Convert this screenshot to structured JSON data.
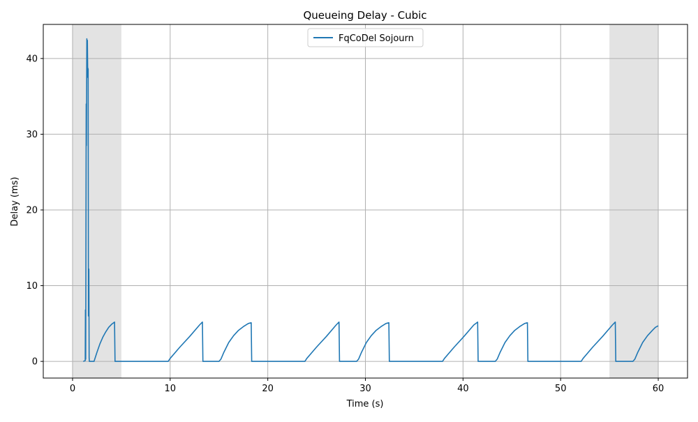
{
  "chart_data": {
    "type": "line",
    "title": "Queueing Delay - Cubic",
    "xlabel": "Time (s)",
    "ylabel": "Delay (ms)",
    "xlim": [
      -3,
      63
    ],
    "ylim": [
      -2.2,
      44.5
    ],
    "xticks": [
      0,
      10,
      20,
      30,
      40,
      50,
      60
    ],
    "yticks": [
      0,
      10,
      20,
      30,
      40
    ],
    "xtick_labels": [
      "0",
      "10",
      "20",
      "30",
      "40",
      "50",
      "60"
    ],
    "ytick_labels": [
      "0",
      "10",
      "20",
      "30",
      "40"
    ],
    "grid": true,
    "legend": {
      "location": "upper center",
      "entries": [
        "FqCoDel Sojourn"
      ]
    },
    "shaded_regions": [
      {
        "x0": 0,
        "x1": 5,
        "color": "#e3e3e3"
      },
      {
        "x0": 55,
        "x1": 60,
        "color": "#e3e3e3"
      }
    ],
    "series": [
      {
        "name": "FqCoDel Sojourn",
        "color": "#1f77b4",
        "points": [
          [
            1.1,
            0.0
          ],
          [
            1.3,
            0.1
          ],
          [
            1.32,
            6.8
          ],
          [
            1.35,
            0.3
          ],
          [
            1.4,
            34.0
          ],
          [
            1.42,
            28.5
          ],
          [
            1.46,
            42.6
          ],
          [
            1.49,
            37.5
          ],
          [
            1.52,
            42.4
          ],
          [
            1.55,
            38.8
          ],
          [
            1.6,
            38.6
          ],
          [
            1.63,
            6.0
          ],
          [
            1.67,
            12.2
          ],
          [
            1.7,
            0.5
          ],
          [
            1.72,
            0.0
          ],
          [
            2.2,
            0.0
          ],
          [
            2.5,
            1.2
          ],
          [
            2.8,
            2.3
          ],
          [
            3.1,
            3.2
          ],
          [
            3.4,
            3.9
          ],
          [
            3.7,
            4.5
          ],
          [
            4.0,
            4.9
          ],
          [
            4.3,
            5.2
          ],
          [
            4.35,
            0.0
          ],
          [
            9.8,
            0.0
          ],
          [
            10.0,
            0.4
          ],
          [
            11.0,
            1.9
          ],
          [
            12.0,
            3.3
          ],
          [
            13.0,
            4.8
          ],
          [
            13.3,
            5.2
          ],
          [
            13.35,
            0.0
          ],
          [
            15.0,
            0.0
          ],
          [
            15.2,
            0.3
          ],
          [
            15.5,
            1.2
          ],
          [
            16.0,
            2.5
          ],
          [
            16.5,
            3.4
          ],
          [
            17.0,
            4.1
          ],
          [
            17.5,
            4.6
          ],
          [
            18.0,
            5.0
          ],
          [
            18.3,
            5.1
          ],
          [
            18.35,
            0.0
          ],
          [
            23.8,
            0.0
          ],
          [
            24.0,
            0.4
          ],
          [
            25.0,
            1.9
          ],
          [
            26.0,
            3.3
          ],
          [
            27.0,
            4.8
          ],
          [
            27.3,
            5.2
          ],
          [
            27.35,
            0.0
          ],
          [
            29.1,
            0.0
          ],
          [
            29.3,
            0.3
          ],
          [
            29.6,
            1.2
          ],
          [
            30.1,
            2.5
          ],
          [
            30.6,
            3.4
          ],
          [
            31.1,
            4.1
          ],
          [
            31.6,
            4.6
          ],
          [
            32.1,
            5.0
          ],
          [
            32.4,
            5.1
          ],
          [
            32.45,
            0.0
          ],
          [
            37.9,
            0.0
          ],
          [
            38.1,
            0.4
          ],
          [
            39.1,
            1.9
          ],
          [
            40.1,
            3.3
          ],
          [
            41.1,
            4.8
          ],
          [
            41.5,
            5.2
          ],
          [
            41.55,
            0.0
          ],
          [
            43.3,
            0.0
          ],
          [
            43.5,
            0.3
          ],
          [
            43.8,
            1.2
          ],
          [
            44.3,
            2.5
          ],
          [
            44.8,
            3.4
          ],
          [
            45.3,
            4.1
          ],
          [
            45.8,
            4.6
          ],
          [
            46.3,
            5.0
          ],
          [
            46.6,
            5.1
          ],
          [
            46.65,
            0.0
          ],
          [
            52.1,
            0.0
          ],
          [
            52.3,
            0.4
          ],
          [
            53.3,
            1.9
          ],
          [
            54.3,
            3.3
          ],
          [
            55.3,
            4.8
          ],
          [
            55.6,
            5.2
          ],
          [
            55.65,
            0.0
          ],
          [
            57.4,
            0.0
          ],
          [
            57.6,
            0.3
          ],
          [
            57.9,
            1.2
          ],
          [
            58.4,
            2.5
          ],
          [
            58.9,
            3.4
          ],
          [
            59.4,
            4.1
          ],
          [
            59.7,
            4.5
          ],
          [
            60.0,
            4.7
          ]
        ]
      }
    ]
  }
}
